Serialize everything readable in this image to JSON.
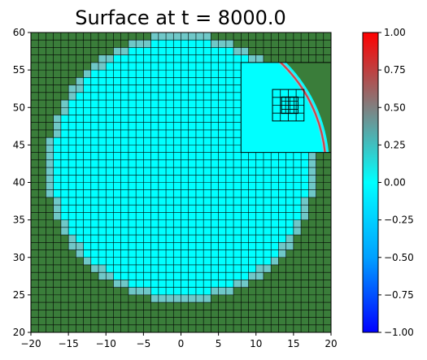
{
  "chart_data": {
    "type": "heatmap",
    "title": "Surface at t =   8000.0",
    "xlabel": "",
    "ylabel": "",
    "xlim": [
      -20,
      20
    ],
    "ylim": [
      20,
      60
    ],
    "xticks": [
      "−20",
      "−15",
      "−10",
      "−5",
      "0",
      "5",
      "10",
      "15",
      "20"
    ],
    "yticks": [
      "20",
      "25",
      "30",
      "35",
      "40",
      "45",
      "50",
      "55",
      "60"
    ],
    "colorbar": {
      "min": -1.0,
      "max": 1.0,
      "ticks": [
        "1.00",
        "0.75",
        "0.50",
        "0.25",
        "0.00",
        "−0.25",
        "−0.50",
        "−0.75",
        "−1.00"
      ],
      "colors": [
        "#0000ff",
        "#00a0ff",
        "#00ffff",
        "#808080",
        "#ff0000"
      ]
    },
    "field": {
      "shape": "circle",
      "center": [
        0,
        42
      ],
      "radius": 18,
      "surface_value": 0.0,
      "land_color": "#3a7d3a",
      "water_color": "#00ffff",
      "shoreline_color": "#6fc8c8"
    },
    "coarse_grid_spacing": 1,
    "refined_patches": [
      {
        "level": 2,
        "xrange": [
          8,
          20
        ],
        "yrange": [
          44,
          56
        ]
      },
      {
        "level": 3,
        "xrange": [
          12.2,
          16.4
        ],
        "yrange": [
          48.2,
          52.4
        ]
      },
      {
        "level": 4,
        "xrange": [
          13.4,
          15.6
        ],
        "yrange": [
          49.2,
          51.4
        ]
      }
    ],
    "wave_front": {
      "center": [
        0,
        42
      ],
      "radius": 19.8,
      "value": 1.0,
      "color": "#d84040"
    }
  }
}
